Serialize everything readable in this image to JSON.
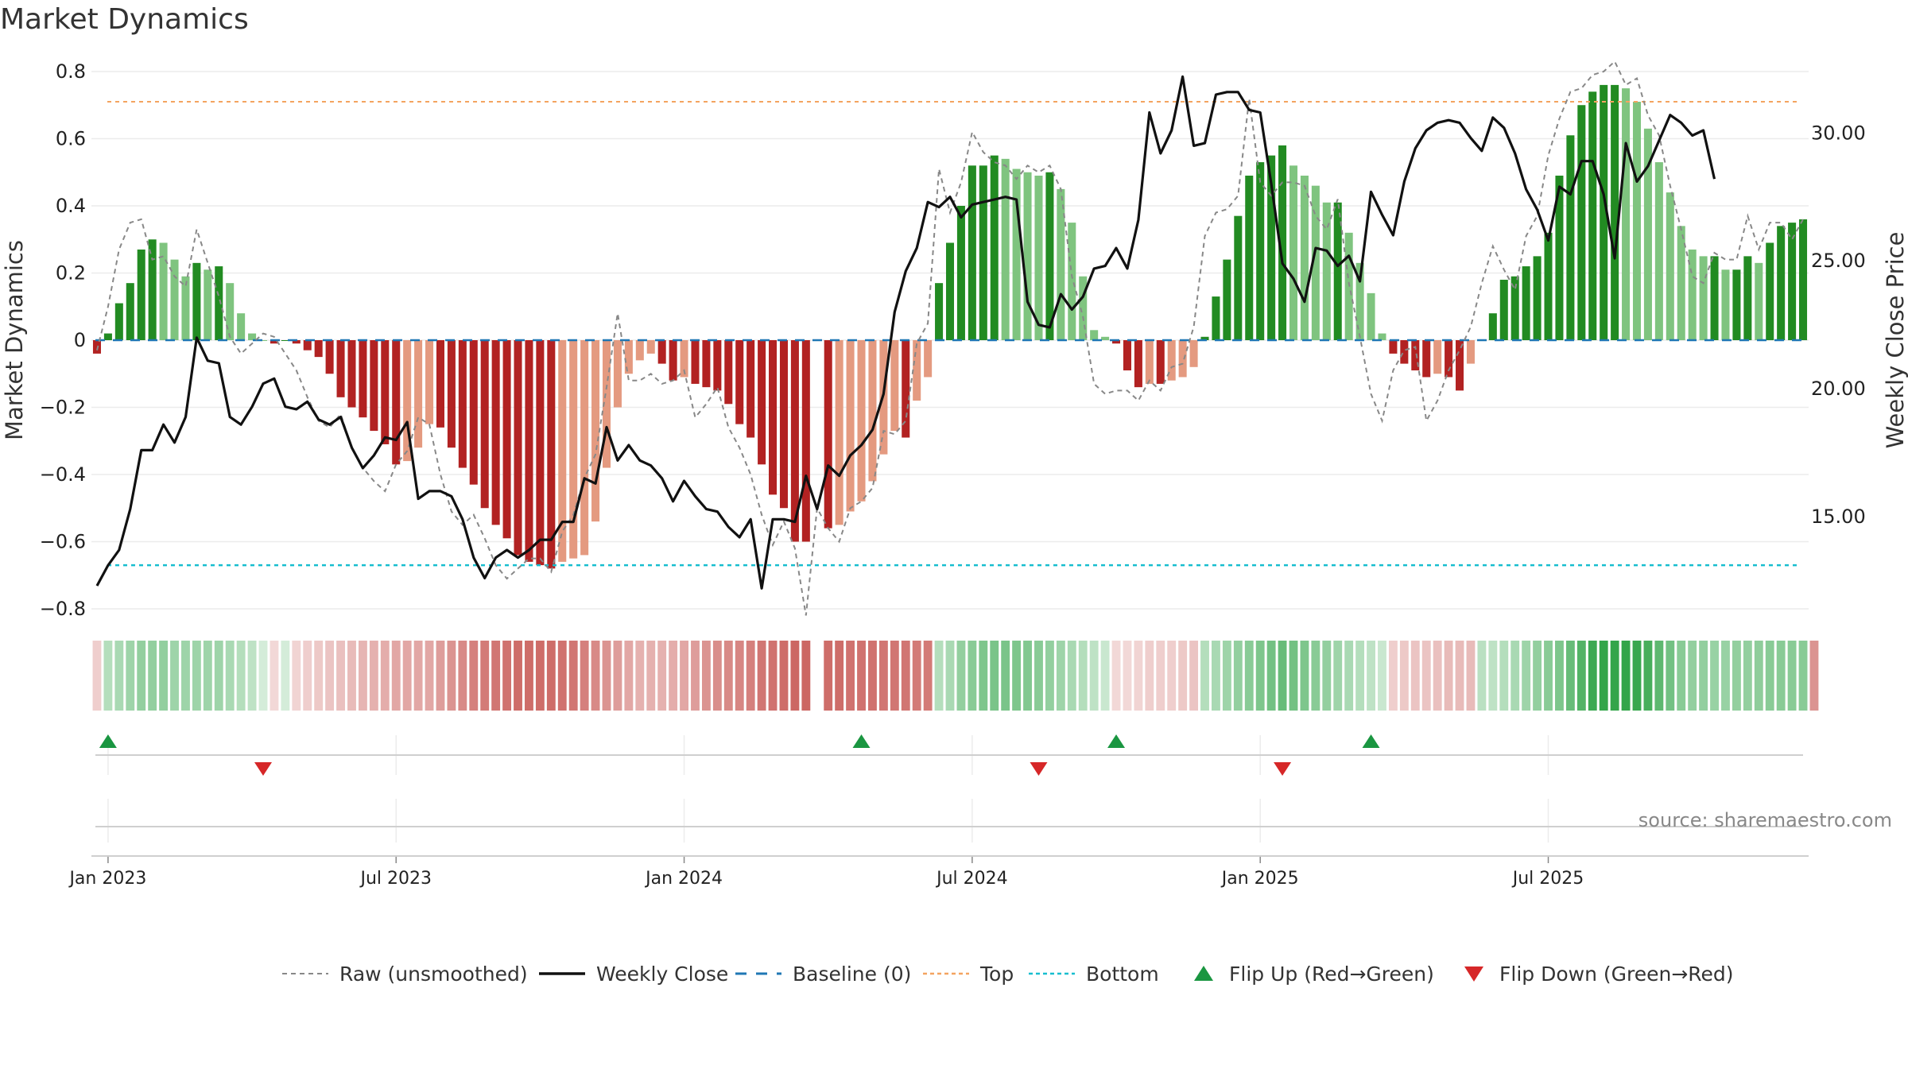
{
  "page": {
    "title": "Market Dynamics"
  },
  "chart_data": {
    "type": "bar",
    "title": "Market Dynamics",
    "ylabel": "Market Dynamics",
    "y2label": "Weekly Close Price",
    "ylim": [
      -0.8,
      0.8
    ],
    "y2lim": [
      11.4,
      32.4
    ],
    "yticks": [
      "0.8",
      "0.6",
      "0.4",
      "0.2",
      "0",
      "−0.2",
      "−0.4",
      "−0.6",
      "−0.8"
    ],
    "y2ticks": [
      "30.00",
      "25.00",
      "20.00",
      "15.00"
    ],
    "y2tick_values": [
      30,
      25,
      20,
      15
    ],
    "xticks": [
      {
        "label": "Jan 2023",
        "week": 1.5
      },
      {
        "label": "Jul 2023",
        "week": 27.5
      },
      {
        "label": "Jan 2024",
        "week": 53.5
      },
      {
        "label": "Jul 2024",
        "week": 79.5
      },
      {
        "label": "Jan 2025",
        "week": 105.5
      },
      {
        "label": "Jul 2025",
        "week": 131.5
      }
    ],
    "top_level": 0.71,
    "bottom_level": -0.67,
    "baseline": 0,
    "source": "source: sharemaestro.com",
    "colors": {
      "green_dark": "#228b22",
      "green_light": "#7fc47f",
      "red_dark": "#b22222",
      "red_light": "#e49a80",
      "raw": "#888888",
      "close": "#111111",
      "baseline": "#1f77b4",
      "top": "#f4a460",
      "bottom": "#17becf",
      "flip_up": "#1a9641",
      "flip_down": "#d62728"
    },
    "series": [
      {
        "name": "Market Dynamics",
        "values": [
          -0.04,
          0.02,
          0.11,
          0.17,
          0.27,
          0.3,
          0.29,
          0.24,
          0.19,
          0.23,
          0.21,
          0.22,
          0.17,
          0.08,
          0.02,
          0,
          -0.01,
          0,
          -0.01,
          -0.03,
          -0.05,
          -0.1,
          -0.17,
          -0.2,
          -0.23,
          -0.27,
          -0.31,
          -0.37,
          -0.36,
          -0.32,
          -0.25,
          -0.26,
          -0.32,
          -0.38,
          -0.43,
          -0.5,
          -0.55,
          -0.59,
          -0.64,
          -0.66,
          -0.67,
          -0.68,
          -0.66,
          -0.65,
          -0.64,
          -0.54,
          -0.38,
          -0.2,
          -0.1,
          -0.06,
          -0.04,
          -0.07,
          -0.12,
          -0.11,
          -0.13,
          -0.14,
          -0.15,
          -0.19,
          -0.25,
          -0.29,
          -0.37,
          -0.46,
          -0.5,
          -0.6,
          -0.6,
          null,
          -0.56,
          -0.55,
          -0.51,
          -0.48,
          -0.42,
          -0.34,
          -0.27,
          -0.29,
          -0.18,
          -0.11,
          0.17,
          0.29,
          0.4,
          0.52,
          0.52,
          0.55,
          0.54,
          0.51,
          0.5,
          0.49,
          0.5,
          0.45,
          0.35,
          0.19,
          0.03,
          0.01,
          -0.01,
          -0.09,
          -0.14,
          -0.13,
          -0.13,
          -0.12,
          -0.11,
          -0.08,
          0.01,
          0.13,
          0.24,
          0.37,
          0.49,
          0.53,
          0.55,
          0.58,
          0.52,
          0.49,
          0.46,
          0.41,
          0.41,
          0.32,
          0.23,
          0.14,
          0.02,
          -0.04,
          -0.07,
          -0.09,
          -0.11,
          -0.1,
          -0.11,
          -0.15,
          -0.07,
          0,
          0.08,
          0.18,
          0.19,
          0.22,
          0.25,
          0.32,
          0.49,
          0.61,
          0.7,
          0.74,
          0.76,
          0.76,
          0.75,
          0.71,
          0.63,
          0.53,
          0.44,
          0.34,
          0.27,
          0.25,
          0.25,
          0.21,
          0.21,
          0.25,
          0.23,
          0.29,
          0.34,
          0.35,
          0.36
        ]
      },
      {
        "name": "Raw (unsmoothed)",
        "values": [
          -0.03,
          0.1,
          0.27,
          0.35,
          0.36,
          0.24,
          0.25,
          0.19,
          0.16,
          0.33,
          0.23,
          0.13,
          0.01,
          -0.04,
          -0.01,
          0.02,
          0.01,
          -0.04,
          -0.09,
          -0.17,
          -0.24,
          -0.26,
          -0.22,
          -0.32,
          -0.38,
          -0.42,
          -0.45,
          -0.37,
          -0.33,
          -0.23,
          -0.25,
          -0.4,
          -0.51,
          -0.55,
          -0.52,
          -0.59,
          -0.67,
          -0.71,
          -0.68,
          -0.65,
          -0.65,
          -0.69,
          -0.57,
          -0.52,
          -0.41,
          -0.34,
          -0.14,
          0.08,
          -0.12,
          -0.12,
          -0.1,
          -0.13,
          -0.12,
          -0.09,
          -0.23,
          -0.19,
          -0.14,
          -0.26,
          -0.32,
          -0.4,
          -0.52,
          -0.61,
          -0.54,
          -0.62,
          -0.82,
          -0.5,
          -0.56,
          -0.6,
          -0.5,
          -0.48,
          -0.44,
          -0.27,
          -0.28,
          -0.24,
          -0.01,
          0.05,
          0.51,
          0.38,
          0.47,
          0.62,
          0.56,
          0.53,
          0.52,
          0.48,
          0.52,
          0.5,
          0.52,
          0.45,
          0.19,
          0.07,
          -0.13,
          -0.16,
          -0.15,
          -0.15,
          -0.18,
          -0.12,
          -0.15,
          -0.08,
          -0.07,
          0.04,
          0.31,
          0.38,
          0.39,
          0.43,
          0.72,
          0.47,
          0.43,
          0.47,
          0.47,
          0.46,
          0.37,
          0.33,
          0.42,
          0.17,
          0.01,
          -0.16,
          -0.24,
          -0.09,
          -0.03,
          -0.02,
          -0.24,
          -0.18,
          -0.09,
          -0.03,
          0.04,
          0.17,
          0.28,
          0.21,
          0.15,
          0.31,
          0.37,
          0.55,
          0.66,
          0.74,
          0.75,
          0.79,
          0.8,
          0.83,
          0.76,
          0.78,
          0.67,
          0.61,
          0.46,
          0.33,
          0.19,
          0.17,
          0.26,
          0.24,
          0.24,
          0.37,
          0.27,
          0.35,
          0.35,
          0.3,
          0.36
        ]
      },
      {
        "name": "Weekly Close",
        "values": [
          12.3,
          13.1,
          13.7,
          15.3,
          17.6,
          17.6,
          18.6,
          17.9,
          18.9,
          22.0,
          21.1,
          21.0,
          18.9,
          18.6,
          19.3,
          20.2,
          20.4,
          19.3,
          19.2,
          19.5,
          18.8,
          18.6,
          18.9,
          17.7,
          16.9,
          17.4,
          18.1,
          18.0,
          18.7,
          15.7,
          16.0,
          16.0,
          15.8,
          14.9,
          13.4,
          12.6,
          13.4,
          13.7,
          13.4,
          13.7,
          14.1,
          14.1,
          14.8,
          14.8,
          16.5,
          16.3,
          18.5,
          17.2,
          17.8,
          17.2,
          17.0,
          16.5,
          15.6,
          16.4,
          15.8,
          15.3,
          15.2,
          14.6,
          14.2,
          14.9,
          12.2,
          14.9,
          14.9,
          14.8,
          16.6,
          15.3,
          17.0,
          16.6,
          17.4,
          17.8,
          18.4,
          19.8,
          23.0,
          24.6,
          25.5,
          27.3,
          27.1,
          27.5,
          26.7,
          27.2,
          27.3,
          27.4,
          27.5,
          27.4,
          23.4,
          22.5,
          22.4,
          23.7,
          23.1,
          23.6,
          24.7,
          24.8,
          25.5,
          24.7,
          26.6,
          30.8,
          29.2,
          30.1,
          32.2,
          29.5,
          29.6,
          31.5,
          31.6,
          31.6,
          30.9,
          30.8,
          28.0,
          24.9,
          24.3,
          23.4,
          25.5,
          25.4,
          24.8,
          25.2,
          24.2,
          27.7,
          26.8,
          26.0,
          28.1,
          29.4,
          30.1,
          30.4,
          30.5,
          30.4,
          29.8,
          29.3,
          30.6,
          30.2,
          29.2,
          27.8,
          27.0,
          25.8,
          27.9,
          27.6,
          28.9,
          28.9,
          27.6,
          25.1,
          29.6,
          28.1,
          28.7,
          29.7,
          30.7,
          30.4,
          29.9,
          30.1,
          28.2
        ]
      }
    ],
    "flips_up_weeks": [
      1,
      69,
      92,
      115
    ],
    "flips_down_weeks": [
      15,
      85,
      107
    ],
    "heatstrip": [
      0.25,
      0.35,
      0.4,
      0.45,
      0.5,
      0.5,
      0.5,
      0.45,
      0.45,
      0.45,
      0.45,
      0.45,
      0.4,
      0.35,
      0.3,
      0.2,
      0.2,
      0.2,
      0.22,
      0.25,
      0.28,
      0.3,
      0.32,
      0.35,
      0.38,
      0.4,
      0.42,
      0.45,
      0.45,
      0.45,
      0.45,
      0.5,
      0.55,
      0.6,
      0.65,
      0.68,
      0.7,
      0.72,
      0.75,
      0.75,
      0.75,
      0.75,
      0.72,
      0.7,
      0.65,
      0.6,
      0.55,
      0.5,
      0.45,
      0.4,
      0.4,
      0.4,
      0.42,
      0.45,
      0.5,
      0.55,
      0.58,
      0.6,
      0.62,
      0.65,
      0.7,
      0.72,
      0.75,
      0.78,
      0.78,
      null,
      0.75,
      0.75,
      0.72,
      0.72,
      0.72,
      0.7,
      0.7,
      0.7,
      0.68,
      0.68,
      0.35,
      0.4,
      0.5,
      0.55,
      0.6,
      0.62,
      0.62,
      0.6,
      0.58,
      0.55,
      0.5,
      0.45,
      0.4,
      0.35,
      0.3,
      0.25,
      0.2,
      0.2,
      0.22,
      0.25,
      0.25,
      0.25,
      0.28,
      0.3,
      0.35,
      0.4,
      0.45,
      0.5,
      0.55,
      0.6,
      0.65,
      0.7,
      0.65,
      0.6,
      0.55,
      0.5,
      0.45,
      0.4,
      0.35,
      0.3,
      0.25,
      0.25,
      0.28,
      0.3,
      0.3,
      0.32,
      0.35,
      0.35,
      0.35,
      0.32,
      0.3,
      0.35,
      0.4,
      0.45,
      0.5,
      0.55,
      0.6,
      0.7,
      0.8,
      0.9,
      0.95,
      0.95,
      0.95,
      0.92,
      0.85,
      0.75,
      0.65,
      0.55,
      0.5,
      0.5,
      0.48,
      0.48,
      0.5,
      0.5,
      0.52,
      0.55,
      0.55,
      0.55,
      0.55,
      0.55
    ]
  },
  "legend": {
    "items": [
      {
        "label": "Raw (unsmoothed)",
        "kind": "dash-gray"
      },
      {
        "label": "Weekly Close",
        "kind": "solid-black"
      },
      {
        "label": "Baseline (0)",
        "kind": "dash-blue"
      },
      {
        "label": "Top",
        "kind": "dot-orange"
      },
      {
        "label": "Bottom",
        "kind": "dot-cyan"
      },
      {
        "label": "Flip Up (Red→Green)",
        "kind": "tri-up"
      },
      {
        "label": "Flip Down (Green→Red)",
        "kind": "tri-down"
      }
    ]
  }
}
